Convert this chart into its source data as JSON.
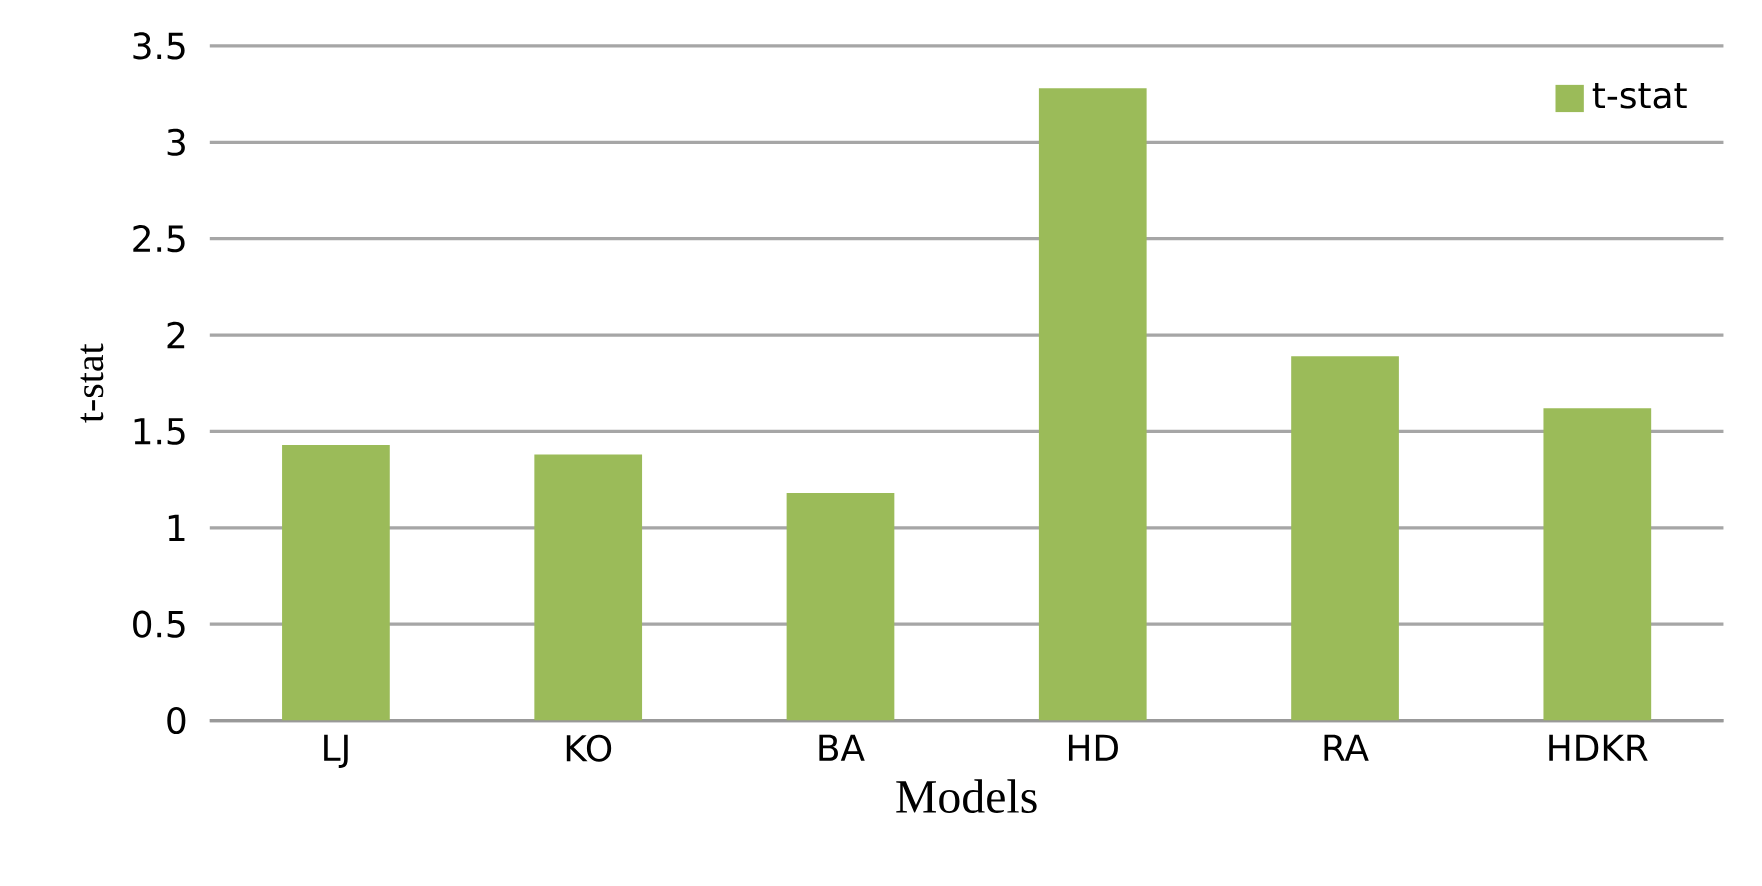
{
  "chart_data": {
    "type": "bar",
    "xlabel": "Models",
    "ylabel": "t-stat",
    "categories": [
      "LJ",
      "KO",
      "BA",
      "HD",
      "RA",
      "HDKR"
    ],
    "series": [
      {
        "name": "t-stat",
        "color": "#9bbb59",
        "values": [
          1.43,
          1.38,
          1.18,
          3.28,
          1.89,
          1.62
        ]
      }
    ],
    "ylim": [
      0,
      3.5
    ],
    "yticks": [
      0,
      0.5,
      1,
      1.5,
      2,
      2.5,
      3,
      3.5
    ],
    "grid": "y",
    "legend": "top right"
  }
}
